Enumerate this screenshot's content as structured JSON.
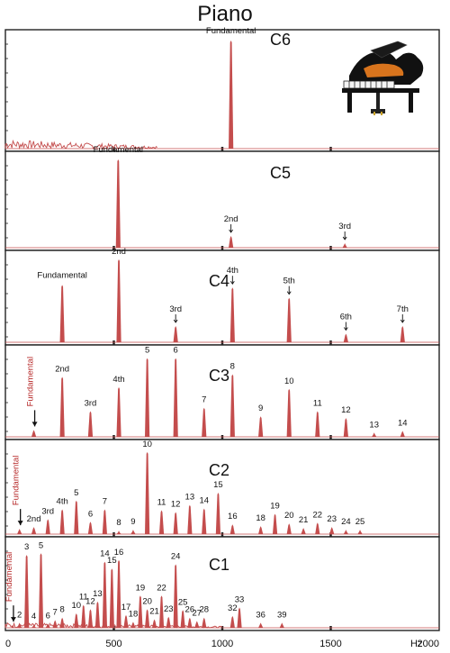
{
  "title": "Piano",
  "x_unit": "Hz",
  "x_ticks": [
    {
      "value": 0,
      "label": "0"
    },
    {
      "value": 500,
      "label": "500"
    },
    {
      "value": 1000,
      "label": "1000"
    },
    {
      "value": 1500,
      "label": "1500"
    },
    {
      "value": 2000,
      "label": "2000"
    }
  ],
  "colors": {
    "peak": "#c44d4d",
    "axis": "#222222",
    "label": "#111111",
    "fundamental_label": "#b52525"
  },
  "illustration": "grand-piano-image",
  "chart_data": [
    {
      "type": "line",
      "panel": "C6",
      "xlim": [
        0,
        2000
      ],
      "ylim": [
        0,
        1
      ],
      "peaks": [
        {
          "x": 1040,
          "y": 0.96,
          "label": "Fundamental",
          "label_style": "plain"
        }
      ],
      "noise_region": [
        0,
        700
      ],
      "noise_level": 0.08
    },
    {
      "type": "line",
      "panel": "C5",
      "xlim": [
        0,
        2000
      ],
      "ylim": [
        0,
        1
      ],
      "peaks": [
        {
          "x": 520,
          "y": 0.98,
          "label": "Fundamental",
          "label_style": "plain"
        },
        {
          "x": 1040,
          "y": 0.13,
          "label": "2nd",
          "label_style": "arrow"
        },
        {
          "x": 1565,
          "y": 0.05,
          "label": "3rd",
          "label_style": "arrow"
        }
      ]
    },
    {
      "type": "line",
      "panel": "C4",
      "xlim": [
        0,
        2000
      ],
      "ylim": [
        0,
        1
      ],
      "peaks": [
        {
          "x": 262,
          "y": 0.67,
          "label": "Fundamental",
          "label_style": "plain"
        },
        {
          "x": 523,
          "y": 0.97,
          "label": "2nd",
          "label_style": "plain"
        },
        {
          "x": 785,
          "y": 0.19,
          "label": "3rd",
          "label_style": "arrow"
        },
        {
          "x": 1047,
          "y": 0.64,
          "label": "4th",
          "label_style": "arrow"
        },
        {
          "x": 1308,
          "y": 0.52,
          "label": "5th",
          "label_style": "arrow"
        },
        {
          "x": 1570,
          "y": 0.1,
          "label": "6th",
          "label_style": "arrow"
        },
        {
          "x": 1831,
          "y": 0.19,
          "label": "7th",
          "label_style": "arrow"
        }
      ]
    },
    {
      "type": "line",
      "panel": "C3",
      "xlim": [
        0,
        2000
      ],
      "ylim": [
        0,
        1
      ],
      "peaks": [
        {
          "x": 131,
          "y": 0.08,
          "label": "Fundamental",
          "label_style": "rotated"
        },
        {
          "x": 262,
          "y": 0.7,
          "label": "2nd",
          "label_style": "plain"
        },
        {
          "x": 392,
          "y": 0.3,
          "label": "3rd",
          "label_style": "plain"
        },
        {
          "x": 523,
          "y": 0.58,
          "label": "4th",
          "label_style": "plain"
        },
        {
          "x": 654,
          "y": 0.92,
          "label": "5",
          "label_style": "plain"
        },
        {
          "x": 785,
          "y": 0.92,
          "label": "6",
          "label_style": "plain"
        },
        {
          "x": 916,
          "y": 0.34,
          "label": "7",
          "label_style": "plain"
        },
        {
          "x": 1047,
          "y": 0.73,
          "label": "8",
          "label_style": "plain"
        },
        {
          "x": 1177,
          "y": 0.24,
          "label": "9",
          "label_style": "plain"
        },
        {
          "x": 1308,
          "y": 0.56,
          "label": "10",
          "label_style": "plain"
        },
        {
          "x": 1439,
          "y": 0.3,
          "label": "11",
          "label_style": "plain"
        },
        {
          "x": 1570,
          "y": 0.22,
          "label": "12",
          "label_style": "plain"
        },
        {
          "x": 1700,
          "y": 0.05,
          "label": "13",
          "label_style": "plain"
        },
        {
          "x": 1831,
          "y": 0.07,
          "label": "14",
          "label_style": "plain"
        }
      ]
    },
    {
      "type": "line",
      "panel": "C2",
      "xlim": [
        0,
        2000
      ],
      "ylim": [
        0,
        1
      ],
      "peaks": [
        {
          "x": 65,
          "y": 0.06,
          "label": "Fundamental",
          "label_style": "rotated"
        },
        {
          "x": 131,
          "y": 0.08,
          "label": "2nd",
          "label_style": "plain"
        },
        {
          "x": 196,
          "y": 0.17,
          "label": "3rd",
          "label_style": "plain"
        },
        {
          "x": 262,
          "y": 0.28,
          "label": "4th",
          "label_style": "plain"
        },
        {
          "x": 327,
          "y": 0.38,
          "label": "5",
          "label_style": "plain"
        },
        {
          "x": 392,
          "y": 0.14,
          "label": "6",
          "label_style": "plain"
        },
        {
          "x": 458,
          "y": 0.28,
          "label": "7",
          "label_style": "plain"
        },
        {
          "x": 523,
          "y": 0.04,
          "label": "8",
          "label_style": "plain"
        },
        {
          "x": 589,
          "y": 0.05,
          "label": "9",
          "label_style": "plain"
        },
        {
          "x": 654,
          "y": 0.93,
          "label": "10",
          "label_style": "plain"
        },
        {
          "x": 720,
          "y": 0.27,
          "label": "11",
          "label_style": "plain"
        },
        {
          "x": 785,
          "y": 0.25,
          "label": "12",
          "label_style": "plain"
        },
        {
          "x": 850,
          "y": 0.33,
          "label": "13",
          "label_style": "plain"
        },
        {
          "x": 916,
          "y": 0.29,
          "label": "14",
          "label_style": "plain"
        },
        {
          "x": 981,
          "y": 0.47,
          "label": "15",
          "label_style": "plain"
        },
        {
          "x": 1047,
          "y": 0.11,
          "label": "16",
          "label_style": "plain"
        },
        {
          "x": 1177,
          "y": 0.09,
          "label": "18",
          "label_style": "plain"
        },
        {
          "x": 1243,
          "y": 0.23,
          "label": "19",
          "label_style": "plain"
        },
        {
          "x": 1308,
          "y": 0.12,
          "label": "20",
          "label_style": "plain"
        },
        {
          "x": 1374,
          "y": 0.07,
          "label": "21",
          "label_style": "plain"
        },
        {
          "x": 1439,
          "y": 0.13,
          "label": "22",
          "label_style": "plain"
        },
        {
          "x": 1505,
          "y": 0.08,
          "label": "23",
          "label_style": "plain"
        },
        {
          "x": 1570,
          "y": 0.05,
          "label": "24",
          "label_style": "plain"
        },
        {
          "x": 1635,
          "y": 0.05,
          "label": "25",
          "label_style": "plain"
        }
      ]
    },
    {
      "type": "line",
      "panel": "C1",
      "xlim": [
        0,
        2000
      ],
      "ylim": [
        0,
        1
      ],
      "peaks": [
        {
          "x": 33,
          "y": 0.03,
          "label": "Fundamental",
          "label_style": "rotated"
        },
        {
          "x": 65,
          "y": 0.06,
          "label": "2",
          "label_style": "plain"
        },
        {
          "x": 98,
          "y": 0.86,
          "label": "3",
          "label_style": "plain"
        },
        {
          "x": 131,
          "y": 0.04,
          "label": "4",
          "label_style": "plain"
        },
        {
          "x": 164,
          "y": 0.88,
          "label": "5",
          "label_style": "plain"
        },
        {
          "x": 196,
          "y": 0.05,
          "label": "6",
          "label_style": "plain"
        },
        {
          "x": 229,
          "y": 0.09,
          "label": "7",
          "label_style": "plain"
        },
        {
          "x": 262,
          "y": 0.12,
          "label": "8",
          "label_style": "plain"
        },
        {
          "x": 327,
          "y": 0.17,
          "label": "10",
          "label_style": "plain"
        },
        {
          "x": 360,
          "y": 0.27,
          "label": "11",
          "label_style": "plain"
        },
        {
          "x": 392,
          "y": 0.22,
          "label": "12",
          "label_style": "plain"
        },
        {
          "x": 425,
          "y": 0.31,
          "label": "13",
          "label_style": "plain"
        },
        {
          "x": 458,
          "y": 0.78,
          "label": "14",
          "label_style": "plain"
        },
        {
          "x": 491,
          "y": 0.7,
          "label": "15",
          "label_style": "plain"
        },
        {
          "x": 523,
          "y": 0.8,
          "label": "16",
          "label_style": "plain"
        },
        {
          "x": 556,
          "y": 0.15,
          "label": "17",
          "label_style": "plain"
        },
        {
          "x": 589,
          "y": 0.07,
          "label": "18",
          "label_style": "plain"
        },
        {
          "x": 622,
          "y": 0.38,
          "label": "19",
          "label_style": "plain"
        },
        {
          "x": 654,
          "y": 0.22,
          "label": "20",
          "label_style": "plain"
        },
        {
          "x": 687,
          "y": 0.1,
          "label": "21",
          "label_style": "plain"
        },
        {
          "x": 720,
          "y": 0.38,
          "label": "22",
          "label_style": "plain"
        },
        {
          "x": 752,
          "y": 0.13,
          "label": "23",
          "label_style": "plain"
        },
        {
          "x": 785,
          "y": 0.75,
          "label": "24",
          "label_style": "plain"
        },
        {
          "x": 818,
          "y": 0.21,
          "label": "25",
          "label_style": "plain"
        },
        {
          "x": 850,
          "y": 0.12,
          "label": "26",
          "label_style": "plain"
        },
        {
          "x": 883,
          "y": 0.08,
          "label": "27",
          "label_style": "plain"
        },
        {
          "x": 916,
          "y": 0.12,
          "label": "28",
          "label_style": "plain"
        },
        {
          "x": 1047,
          "y": 0.14,
          "label": "32",
          "label_style": "plain"
        },
        {
          "x": 1079,
          "y": 0.24,
          "label": "33",
          "label_style": "plain"
        },
        {
          "x": 1177,
          "y": 0.06,
          "label": "36",
          "label_style": "plain"
        },
        {
          "x": 1275,
          "y": 0.06,
          "label": "39",
          "label_style": "plain"
        }
      ],
      "noise_region": [
        0,
        1000
      ],
      "noise_level": 0.06
    }
  ]
}
